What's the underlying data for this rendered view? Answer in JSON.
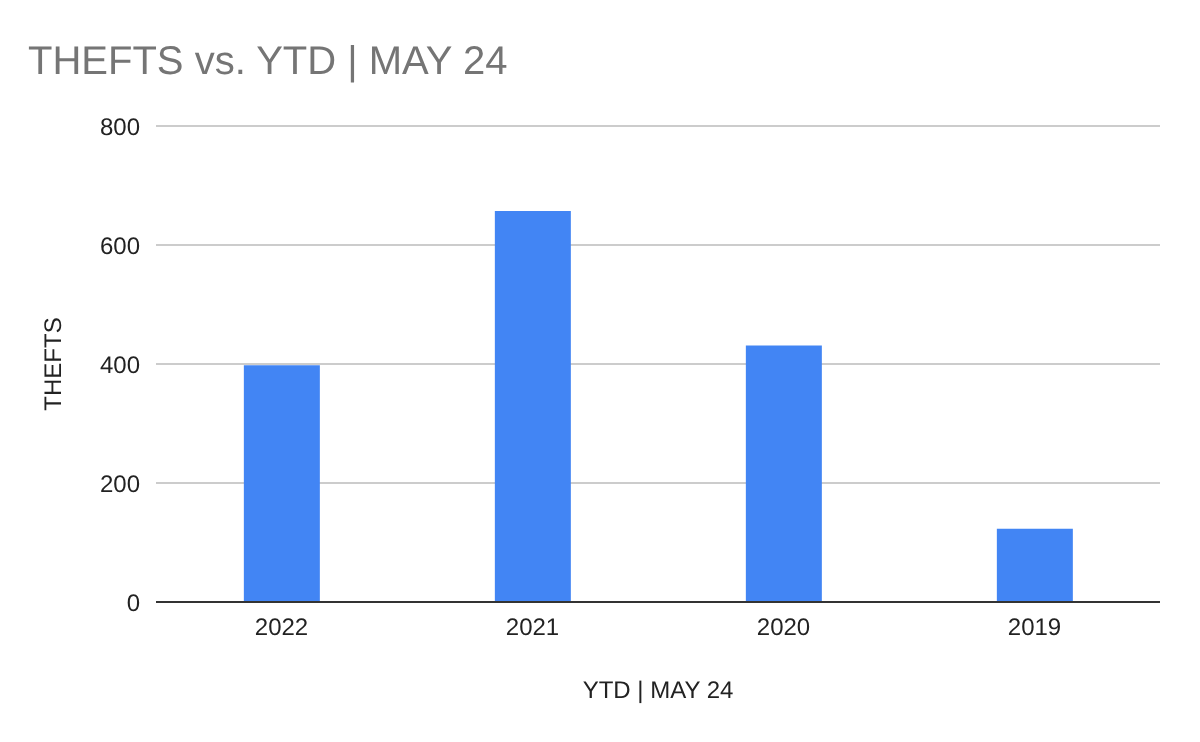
{
  "chart_data": {
    "type": "bar",
    "title": "THEFTS vs. YTD | MAY 24",
    "xlabel": "YTD | MAY 24",
    "ylabel": "THEFTS",
    "categories": [
      "2022",
      "2021",
      "2020",
      "2019"
    ],
    "values": [
      398,
      657,
      431,
      123
    ],
    "color": "#4285f4",
    "ylim": [
      0,
      800
    ],
    "yticks": [
      0,
      200,
      400,
      600,
      800
    ],
    "grid": "y"
  }
}
